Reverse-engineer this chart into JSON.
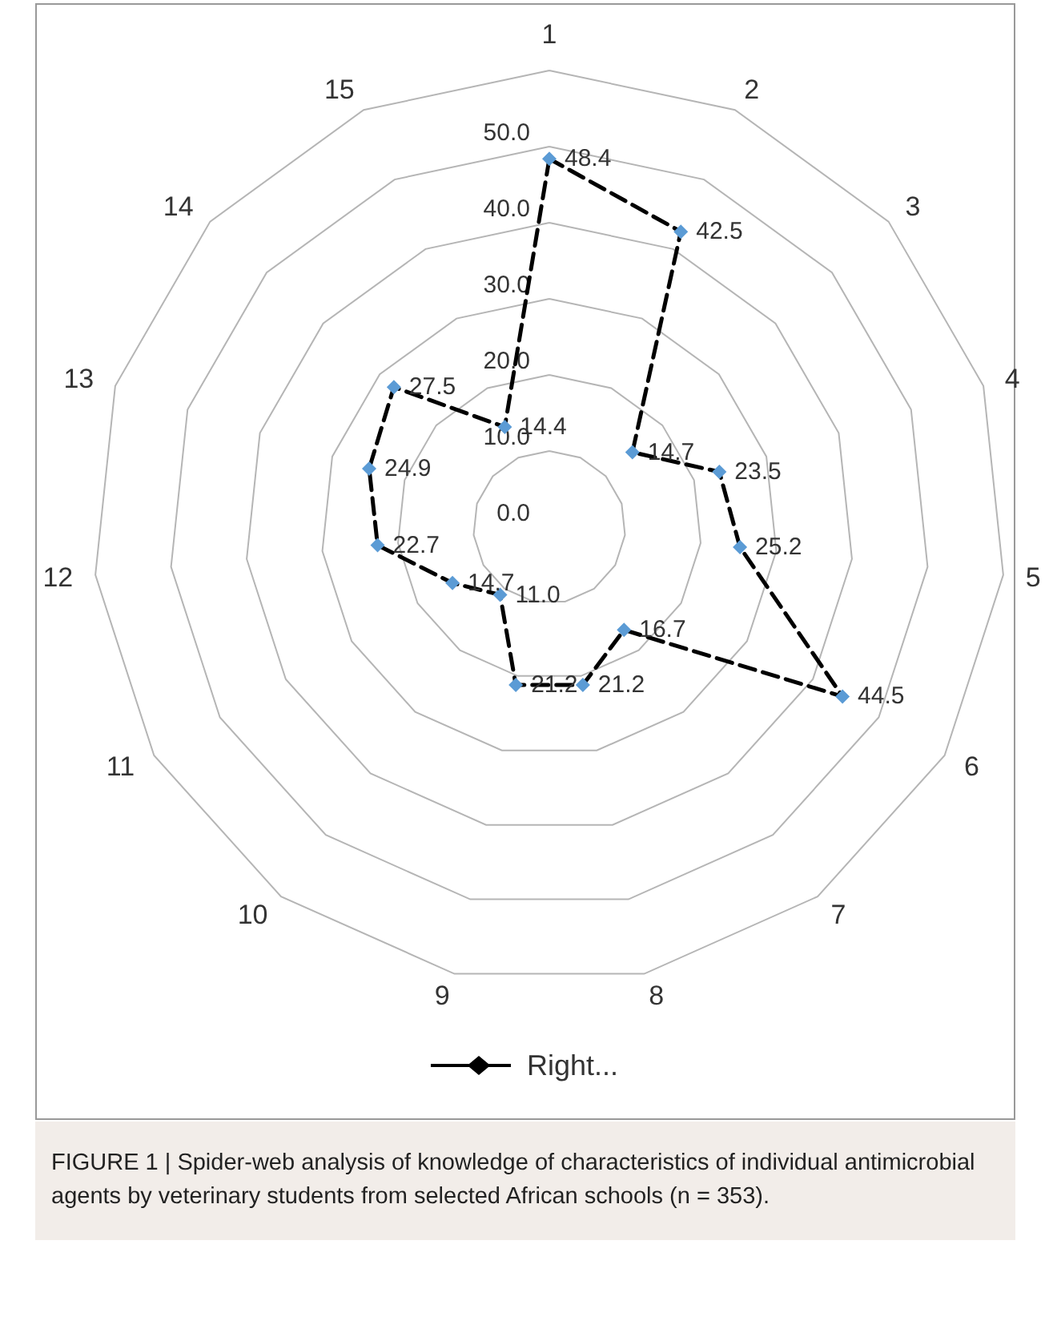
{
  "chart_data": {
    "type": "radar",
    "categories": [
      "1",
      "2",
      "3",
      "4",
      "5",
      "6",
      "7",
      "8",
      "9",
      "10",
      "11",
      "12",
      "13",
      "14",
      "15"
    ],
    "series": [
      {
        "name": "Right...",
        "color": "#000000",
        "colors": [
          "#5b9bd5",
          "#5b9bd5",
          "#5b9bd5",
          "#5b9bd5",
          "#5b9bd5",
          "#5b9bd5",
          "#5b9bd5",
          "#5b9bd5",
          "#5b9bd5",
          "#5b9bd5",
          "#5b9bd5",
          "#5b9bd5",
          "#5b9bd5",
          "#5b9bd5",
          "#5b9bd5"
        ],
        "values": [
          48.4,
          42.5,
          14.7,
          23.5,
          25.2,
          44.5,
          16.7,
          21.2,
          21.2,
          11.0,
          14.7,
          22.7,
          24.9,
          27.5,
          14.4
        ],
        "value_labels": [
          "48.4",
          "42.5",
          "14.7",
          "23.5",
          "25.2",
          "44.5",
          "16.7",
          "21.2",
          "21.2",
          "11.0",
          "14.7",
          "22.7",
          "24.9",
          "27.5",
          "14.4"
        ]
      }
    ],
    "ylim": [
      0,
      60
    ],
    "yticks": [
      {
        "value": 0,
        "label": "0.0"
      },
      {
        "value": 10,
        "label": "10.0"
      },
      {
        "value": 20,
        "label": "20.0"
      },
      {
        "value": 30,
        "label": "30.0"
      },
      {
        "value": 40,
        "label": "40.0"
      },
      {
        "value": 50,
        "label": "50.0"
      }
    ],
    "grid": true,
    "legend": "bottom",
    "marker": "diamond",
    "line_style": "dashed",
    "annotations": [
      "FIGURE 1 | Spider-web analysis of knowledge of characteristics of individual antimicrobial agents by veterinary students from selected African schools (n = 353)."
    ]
  }
}
